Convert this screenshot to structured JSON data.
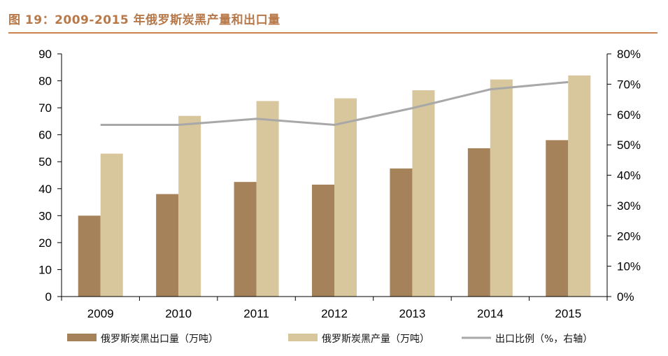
{
  "title": "图 19：2009-2015 年俄罗斯炭黑产量和出口量",
  "colors": {
    "export_bar": "#a6825b",
    "production_bar": "#d8c69d",
    "ratio_line": "#a8a8a8",
    "title": "#b7794a"
  },
  "chart_data": {
    "type": "bar",
    "title": "图 19：2009-2015 年俄罗斯炭黑产量和出口量",
    "categories": [
      "2009",
      "2010",
      "2011",
      "2012",
      "2013",
      "2014",
      "2015"
    ],
    "series": [
      {
        "name": "俄罗斯炭黑出口量（万吨）",
        "type": "bar",
        "axis": "left",
        "values": [
          30,
          38,
          42.5,
          41.5,
          47.5,
          55,
          58
        ]
      },
      {
        "name": "俄罗斯炭黑产量（万吨）",
        "type": "bar",
        "axis": "left",
        "values": [
          53,
          67,
          72.5,
          73.5,
          76.5,
          80.5,
          82
        ]
      },
      {
        "name": "出口比例（%，右轴）",
        "type": "line",
        "axis": "right",
        "values": [
          0.566,
          0.566,
          0.586,
          0.566,
          0.621,
          0.683,
          0.707
        ]
      }
    ],
    "y_left": {
      "min": 0,
      "max": 90,
      "ticks": [
        0,
        10,
        20,
        30,
        40,
        50,
        60,
        70,
        80,
        90
      ]
    },
    "y_right": {
      "min": 0,
      "max": 0.8,
      "ticks": [
        "0%",
        "10%",
        "20%",
        "30%",
        "40%",
        "50%",
        "60%",
        "70%",
        "80%"
      ]
    },
    "legend_position": "bottom",
    "grid": false
  }
}
